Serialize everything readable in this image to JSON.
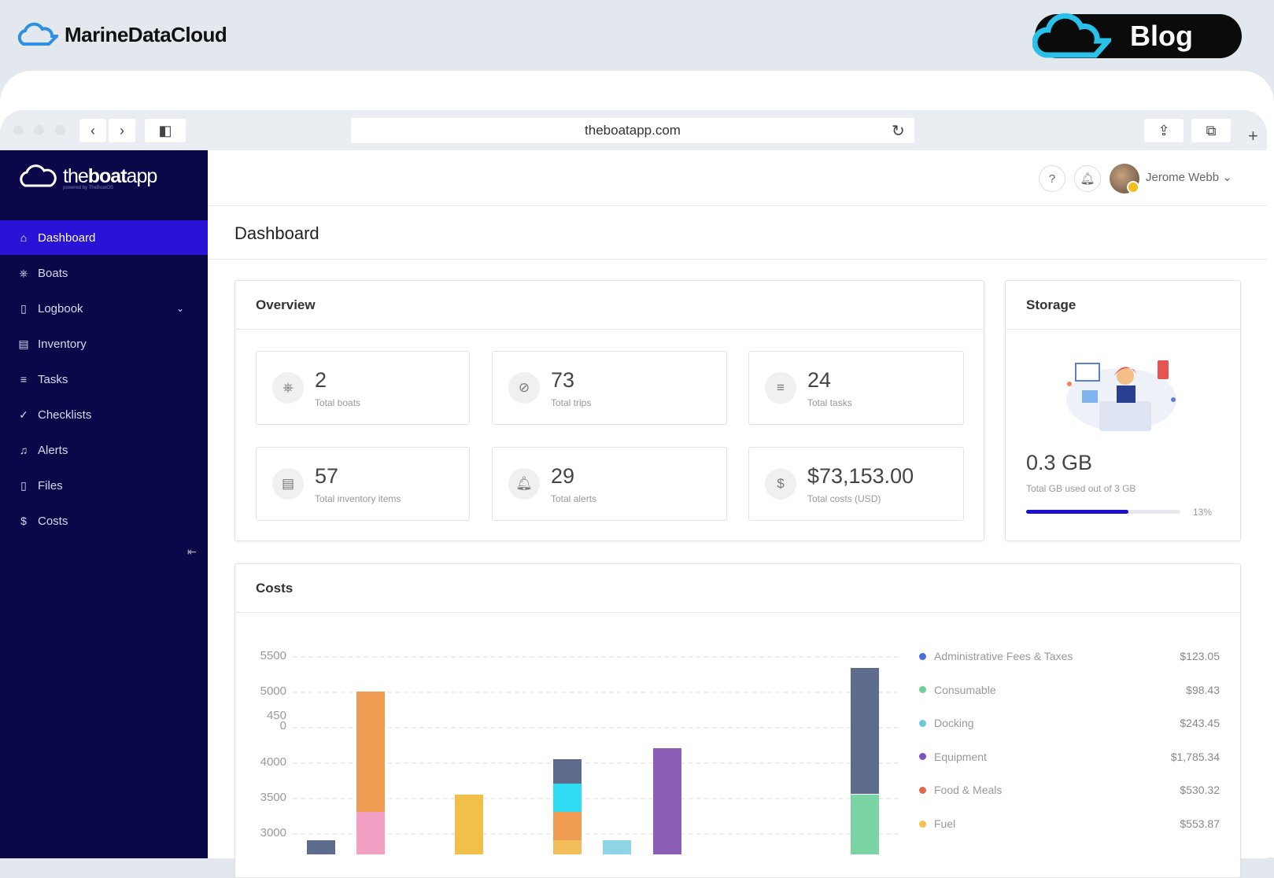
{
  "site": {
    "brand": "MarineDataCloud",
    "blog_label": "Blog"
  },
  "browser": {
    "url": "theboatapp.com"
  },
  "app": {
    "logo_light": "the",
    "logo_bold": "boat",
    "logo_end": "app",
    "logo_sub": "powered by TheBoatOS"
  },
  "sidebar": {
    "items": [
      {
        "label": "Dashboard",
        "icon": "home-icon",
        "glyph": "⌂"
      },
      {
        "label": "Boats",
        "icon": "boat-wheel-icon",
        "glyph": "⎈"
      },
      {
        "label": "Logbook",
        "icon": "book-icon",
        "glyph": "▯"
      },
      {
        "label": "Inventory",
        "icon": "inventory-icon",
        "glyph": "▤"
      },
      {
        "label": "Tasks",
        "icon": "list-icon",
        "glyph": "≡"
      },
      {
        "label": "Checklists",
        "icon": "check-circle-icon",
        "glyph": "✓"
      },
      {
        "label": "Alerts",
        "icon": "alert-icon",
        "glyph": "♫"
      },
      {
        "label": "Files",
        "icon": "file-icon",
        "glyph": "▯"
      },
      {
        "label": "Costs",
        "icon": "dollar-icon",
        "glyph": "$"
      }
    ]
  },
  "header": {
    "user": "Jerome Webb"
  },
  "page": {
    "title": "Dashboard"
  },
  "overview": {
    "title": "Overview",
    "stats": [
      {
        "value": "2",
        "label": "Total boats",
        "icon": "boat-wheel-icon",
        "glyph": "⎈"
      },
      {
        "value": "73",
        "label": "Total trips",
        "icon": "compass-icon",
        "glyph": "⊘"
      },
      {
        "value": "24",
        "label": "Total tasks",
        "icon": "list-icon",
        "glyph": "≡"
      },
      {
        "value": "57",
        "label": "Total inventory items",
        "icon": "inventory-icon",
        "glyph": "▤"
      },
      {
        "value": "29",
        "label": "Total alerts",
        "icon": "bell-icon",
        "glyph": "🔔︎"
      },
      {
        "value": "$73,153.00",
        "label": "Total costs (USD)",
        "icon": "dollar-icon",
        "glyph": "$"
      }
    ]
  },
  "storage": {
    "title": "Storage",
    "value": "0.3 GB",
    "label": "Total GB used out of 3 GB",
    "percent_label": "13%",
    "percent": 13,
    "accent": "#1d0fc9"
  },
  "costs": {
    "title": "Costs"
  },
  "chart_data": {
    "type": "bar",
    "stacked": true,
    "yticks": [
      "5500",
      "5000",
      "450\n0",
      "4000",
      "3500",
      "3000"
    ],
    "ylim_visible": [
      3000,
      5500
    ],
    "grid": true,
    "legend_position": "right",
    "bars": [
      {
        "segments": [
          {
            "color": "#5d6b8c",
            "from": 2700,
            "to": 2900
          }
        ]
      },
      {
        "segments": [
          {
            "color": "#f29fc4",
            "from": 2700,
            "to": 3300
          },
          {
            "color": "#ef9b52",
            "from": 3300,
            "to": 5000
          }
        ]
      },
      {
        "segments": [
          {
            "color": "#f1c04a",
            "from": 2700,
            "to": 3550
          }
        ]
      },
      {
        "segments": [
          {
            "color": "#f2be59",
            "from": 2700,
            "to": 2900
          },
          {
            "color": "#ef9b52",
            "from": 2900,
            "to": 3300
          },
          {
            "color": "#30dcf1",
            "from": 3300,
            "to": 3700
          },
          {
            "color": "#5d6b8c",
            "from": 3700,
            "to": 4050
          }
        ]
      },
      {
        "segments": [
          {
            "color": "#8fd3e6",
            "from": 2700,
            "to": 2900
          }
        ]
      },
      {
        "segments": [
          {
            "color": "#8b5fb5",
            "from": 2700,
            "to": 4200
          }
        ]
      },
      {
        "segments": [
          {
            "color": "#7bd4a4",
            "from": 2700,
            "to": 3550
          },
          {
            "color": "#5d6b8c",
            "from": 3550,
            "to": 5330
          }
        ]
      }
    ],
    "legend": [
      {
        "name": "Administrative Fees & Taxes",
        "value": "$123.05",
        "color": "#4c6fe0"
      },
      {
        "name": "Consumable",
        "value": "$98.43",
        "color": "#6fcf97"
      },
      {
        "name": "Docking",
        "value": "$243.45",
        "color": "#6cc7dc"
      },
      {
        "name": "Equipment",
        "value": "$1,785.34",
        "color": "#7c54c2"
      },
      {
        "name": "Food & Meals",
        "value": "$530.32",
        "color": "#e06a4e"
      },
      {
        "name": "Fuel",
        "value": "$553.87",
        "color": "#f2c14e"
      }
    ]
  }
}
